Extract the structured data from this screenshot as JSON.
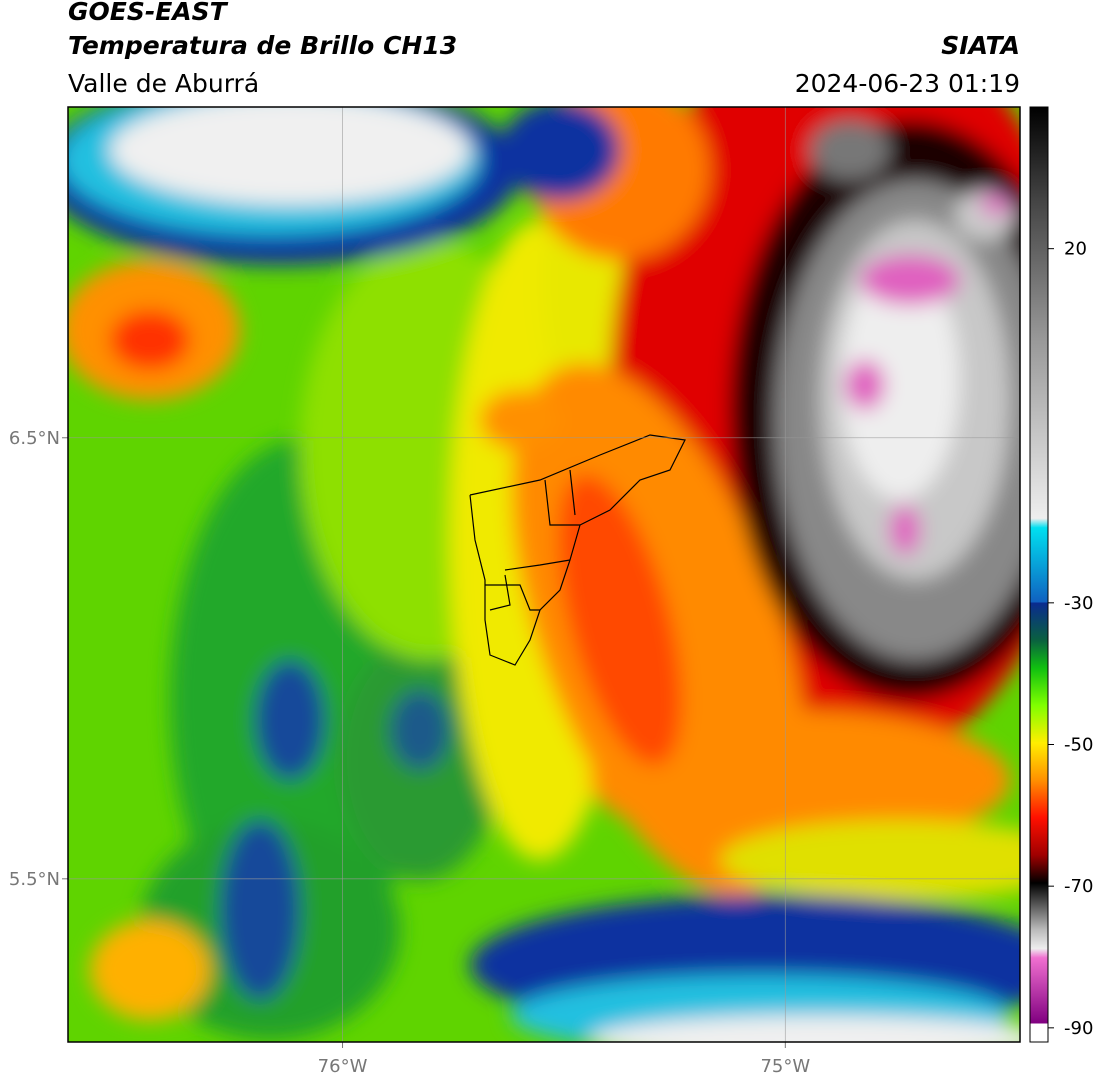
{
  "header": {
    "title": "GOES-EAST",
    "subtitle": "Temperatura de Brillo CH13",
    "region": "Valle de Aburrá",
    "source": "SIATA",
    "datetime": "2024-06-23 01:19"
  },
  "map": {
    "xlim": [
      -76.62,
      -74.47
    ],
    "ylim": [
      5.13,
      7.25
    ],
    "xticks": [
      {
        "value": -76,
        "label": "76°W"
      },
      {
        "value": -75,
        "label": "75°W"
      }
    ],
    "yticks": [
      {
        "value": 6.5,
        "label": "6.5°N"
      },
      {
        "value": 5.5,
        "label": "5.5°N"
      }
    ],
    "grid": true
  },
  "colorbar": {
    "lim": [
      -92,
      40
    ],
    "ticks": [
      20,
      -30,
      -50,
      -70,
      -90
    ]
  }
}
